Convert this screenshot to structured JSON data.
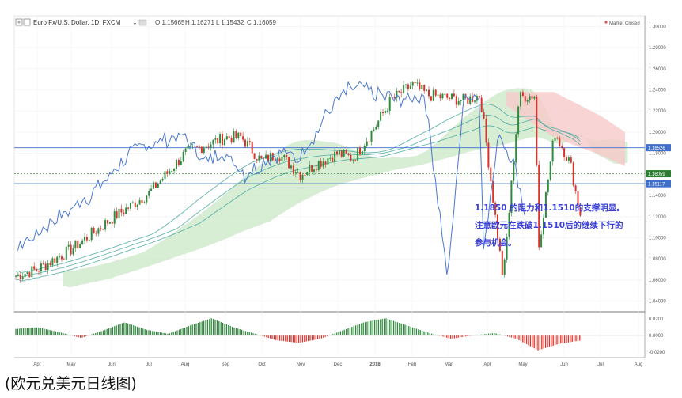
{
  "header": {
    "symbol": "Euro Fx/U.S. Dollar, 1D, FXCM",
    "ohlc": {
      "o": "O 1.15665",
      "h": "H 1.16271",
      "l": "L 1.15432",
      "c": "C 1.16059"
    },
    "market_status": "Market Closed"
  },
  "annotation": {
    "line1": "1.1850  的阻力和1.1510的支撑明显。",
    "line2": "注意欧元在跌破1.1510后的继续下行的",
    "line3": "参与机会。"
  },
  "caption": "(欧元兑美元日线图)",
  "colors": {
    "up": "#2e8b3c",
    "down": "#d9342b",
    "line_price": "#4a78d0",
    "level": "#3f6fc8",
    "cloud_bull": "#c9e7c6",
    "cloud_bear": "#f7c9c9",
    "ribbon": "#4aa9a0",
    "annotation": "#3a3fd6",
    "tag_green": "#2e7d32",
    "tag_blue": "#3f6fc8"
  },
  "chart_data": {
    "type": "line",
    "series_name": "Euro Fx/U.S. Dollar, 1D, FXCM",
    "price_axis": {
      "ylim": [
        1.03,
        1.31
      ],
      "ticks": [
        "1.30000",
        "1.28000",
        "1.26000",
        "1.24000",
        "1.22000",
        "1.20000",
        "1.18000",
        "1.16000",
        "1.14000",
        "1.12000",
        "1.10000",
        "1.08000",
        "1.06000",
        "1.04000"
      ],
      "tags": [
        {
          "label": "1.18526",
          "value": 1.18526,
          "color": "tag_blue"
        },
        {
          "label": "1.16059",
          "value": 1.16059,
          "color": "tag_green"
        },
        {
          "label": "1.15117",
          "value": 1.15117,
          "color": "tag_blue"
        }
      ]
    },
    "levels": [
      1.1852,
      1.1606,
      1.1512
    ],
    "x_axis_labels": [
      "Apr",
      "May",
      "Jun",
      "Jul",
      "Aug",
      "Sep",
      "Oct",
      "Nov",
      "Dec",
      "2018",
      "Feb",
      "Mar",
      "Apr",
      "May",
      "Jun",
      "Jul",
      "Aug"
    ],
    "price_path": [
      [
        "Mar",
        1.064
      ],
      [
        "Apr",
        1.07
      ],
      [
        "Apr",
        1.06
      ],
      [
        "May",
        1.089
      ],
      [
        "May",
        1.092
      ],
      [
        "Jun",
        1.118
      ],
      [
        "Jun",
        1.122
      ],
      [
        "Jul",
        1.142
      ],
      [
        "Jul",
        1.155
      ],
      [
        "Aug",
        1.18
      ],
      [
        "Aug",
        1.175
      ],
      [
        "Sep",
        1.195
      ],
      [
        "Sep",
        1.195
      ],
      [
        "Oct",
        1.172
      ],
      [
        "Oct",
        1.18
      ],
      [
        "Nov",
        1.16
      ],
      [
        "Nov",
        1.17
      ],
      [
        "Dec",
        1.18
      ],
      [
        "Dec",
        1.175
      ],
      [
        "2018",
        1.205
      ],
      [
        "2018",
        1.23
      ],
      [
        "Feb",
        1.245
      ],
      [
        "Feb",
        1.235
      ],
      [
        "Mar",
        1.23
      ],
      [
        "Mar",
        1.235
      ],
      [
        "Apr",
        1.233
      ],
      [
        "Apr",
        1.235
      ],
      [
        "May",
        1.2
      ],
      [
        "May",
        1.17
      ],
      [
        "Jun",
        1.16
      ],
      [
        "Jun",
        1.175
      ],
      [
        "Jun",
        1.1606
      ]
    ],
    "oscillator": {
      "ylim": [
        -0.025,
        0.025
      ],
      "ticks": [
        "0.0200",
        "0.0000",
        "-0.0200"
      ],
      "values": [
        0.008,
        0.01,
        0.004,
        -0.003,
        0.006,
        0.016,
        0.007,
        0.002,
        0.012,
        0.021,
        0.01,
        0.002,
        -0.006,
        -0.009,
        -0.004,
        0.006,
        0.016,
        0.021,
        0.012,
        0.003,
        -0.004,
        0.0,
        0.003,
        -0.004,
        -0.018,
        -0.01,
        -0.006
      ]
    }
  }
}
